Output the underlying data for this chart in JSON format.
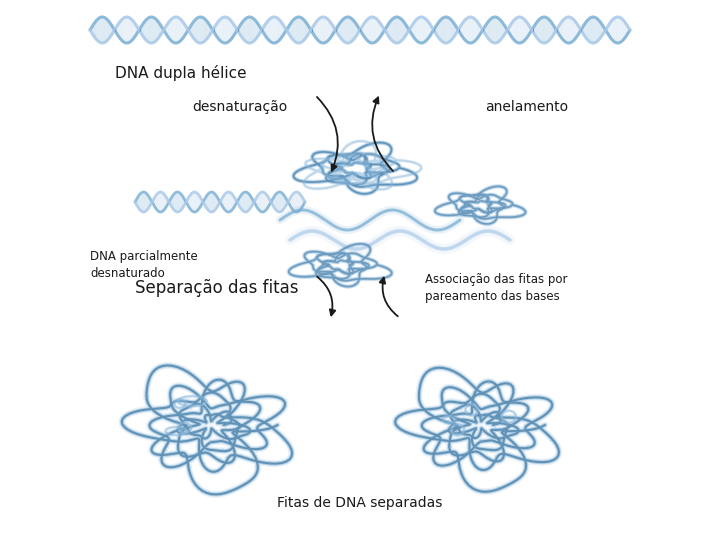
{
  "background_color": "#ffffff",
  "labels": {
    "dna_dupla_helice": "DNA dupla hélice",
    "desnaturacao": "desnaturação",
    "anelamento": "anelamento",
    "dna_parcialmente": "DNA parcialmente\ndesnaturado",
    "separacao": "Separação das fitas",
    "associacao": "Associação das fitas por\npareamento das bases",
    "fitas_separadas": "Fitas de DNA separadas"
  },
  "text_color": "#1a1a1a",
  "dna_color_light": "#a8c8e8",
  "dna_color_mid": "#7aafd4",
  "dna_color_dark": "#4a7fa8",
  "dna_color_deep": "#2a5a8a",
  "arrow_color": "#1a1a1a",
  "font_size_title": 11,
  "font_size_label": 10,
  "font_size_small": 8,
  "fig_width": 7.2,
  "fig_height": 5.4
}
